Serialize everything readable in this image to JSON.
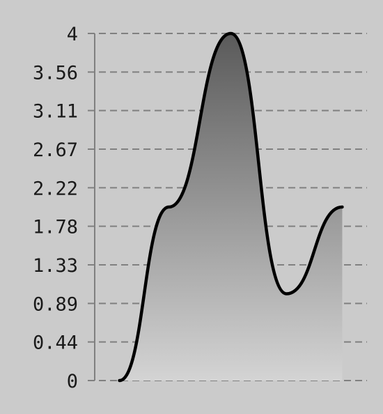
{
  "colors": {
    "background": "#cbcbcb",
    "line": "#000000",
    "grid": "#808080",
    "axis": "#808080",
    "fill_top": "#5a5a5a",
    "fill_bottom": "#d4d4d4"
  },
  "chart_data": {
    "type": "area",
    "title": "",
    "xlabel": "",
    "ylabel": "",
    "ylim": [
      0,
      4
    ],
    "yticks": [
      "0",
      "0.44",
      "0.89",
      "1.33",
      "1.78",
      "2.22",
      "2.67",
      "3.11",
      "3.56",
      "4"
    ],
    "grid": true,
    "grid_style": "dashed",
    "legend": "none",
    "x_axis_labels_shown": false,
    "x": [
      0,
      1,
      2,
      3,
      4,
      5
    ],
    "series": [
      {
        "values": [
          0,
          2,
          4,
          1,
          2
        ],
        "x": [
          0.4,
          1.2,
          2.2,
          3.1,
          4.0
        ]
      }
    ]
  }
}
